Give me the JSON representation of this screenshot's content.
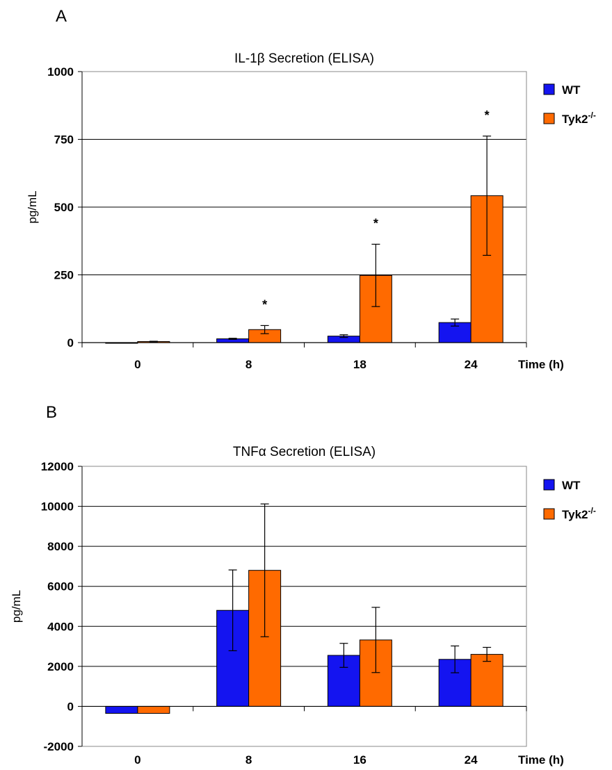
{
  "chart_data": [
    {
      "type": "bar",
      "panel": "A",
      "title": "IL-1β Secretion (ELISA)",
      "xlabel": "Time (h)",
      "ylabel": "pg/mL",
      "ylim": [
        0,
        1000
      ],
      "yticks": [
        "0",
        "250",
        "500",
        "750",
        "1000"
      ],
      "categories": [
        "0",
        "8",
        "18",
        "24"
      ],
      "grid": true,
      "legend_position": "right",
      "series": [
        {
          "name": "WT",
          "sup": "",
          "color": "#1414f0",
          "values": [
            0,
            14,
            24,
            74
          ],
          "errors": [
            0,
            2,
            5,
            13
          ]
        },
        {
          "name": "Tyk2",
          "sup": "-/-",
          "color": "#ff6a00",
          "values": [
            4,
            48,
            248,
            542
          ],
          "errors": [
            1,
            15,
            115,
            220
          ]
        }
      ],
      "annotations": [
        {
          "category": 1,
          "text": "*"
        },
        {
          "category": 2,
          "text": "*"
        },
        {
          "category": 3,
          "text": "*"
        }
      ]
    },
    {
      "type": "bar",
      "panel": "B",
      "title": "TNFα Secretion (ELISA)",
      "xlabel": "Time (h)",
      "ylabel": "pg/mL",
      "ylim": [
        -2000,
        12000
      ],
      "yticks": [
        "-2000",
        "0",
        "2000",
        "4000",
        "6000",
        "8000",
        "10000",
        "12000"
      ],
      "categories": [
        "0",
        "8",
        "16",
        "24"
      ],
      "grid": true,
      "legend_position": "right",
      "series": [
        {
          "name": "WT",
          "sup": "",
          "color": "#1414f0",
          "values": [
            -350,
            4800,
            2550,
            2350
          ],
          "errors": [
            0,
            2020,
            600,
            670
          ]
        },
        {
          "name": "Tyk2",
          "sup": "-/-",
          "color": "#ff6a00",
          "values": [
            -350,
            6800,
            3320,
            2600
          ],
          "errors": [
            0,
            3320,
            1630,
            350
          ]
        }
      ],
      "annotations": []
    }
  ]
}
